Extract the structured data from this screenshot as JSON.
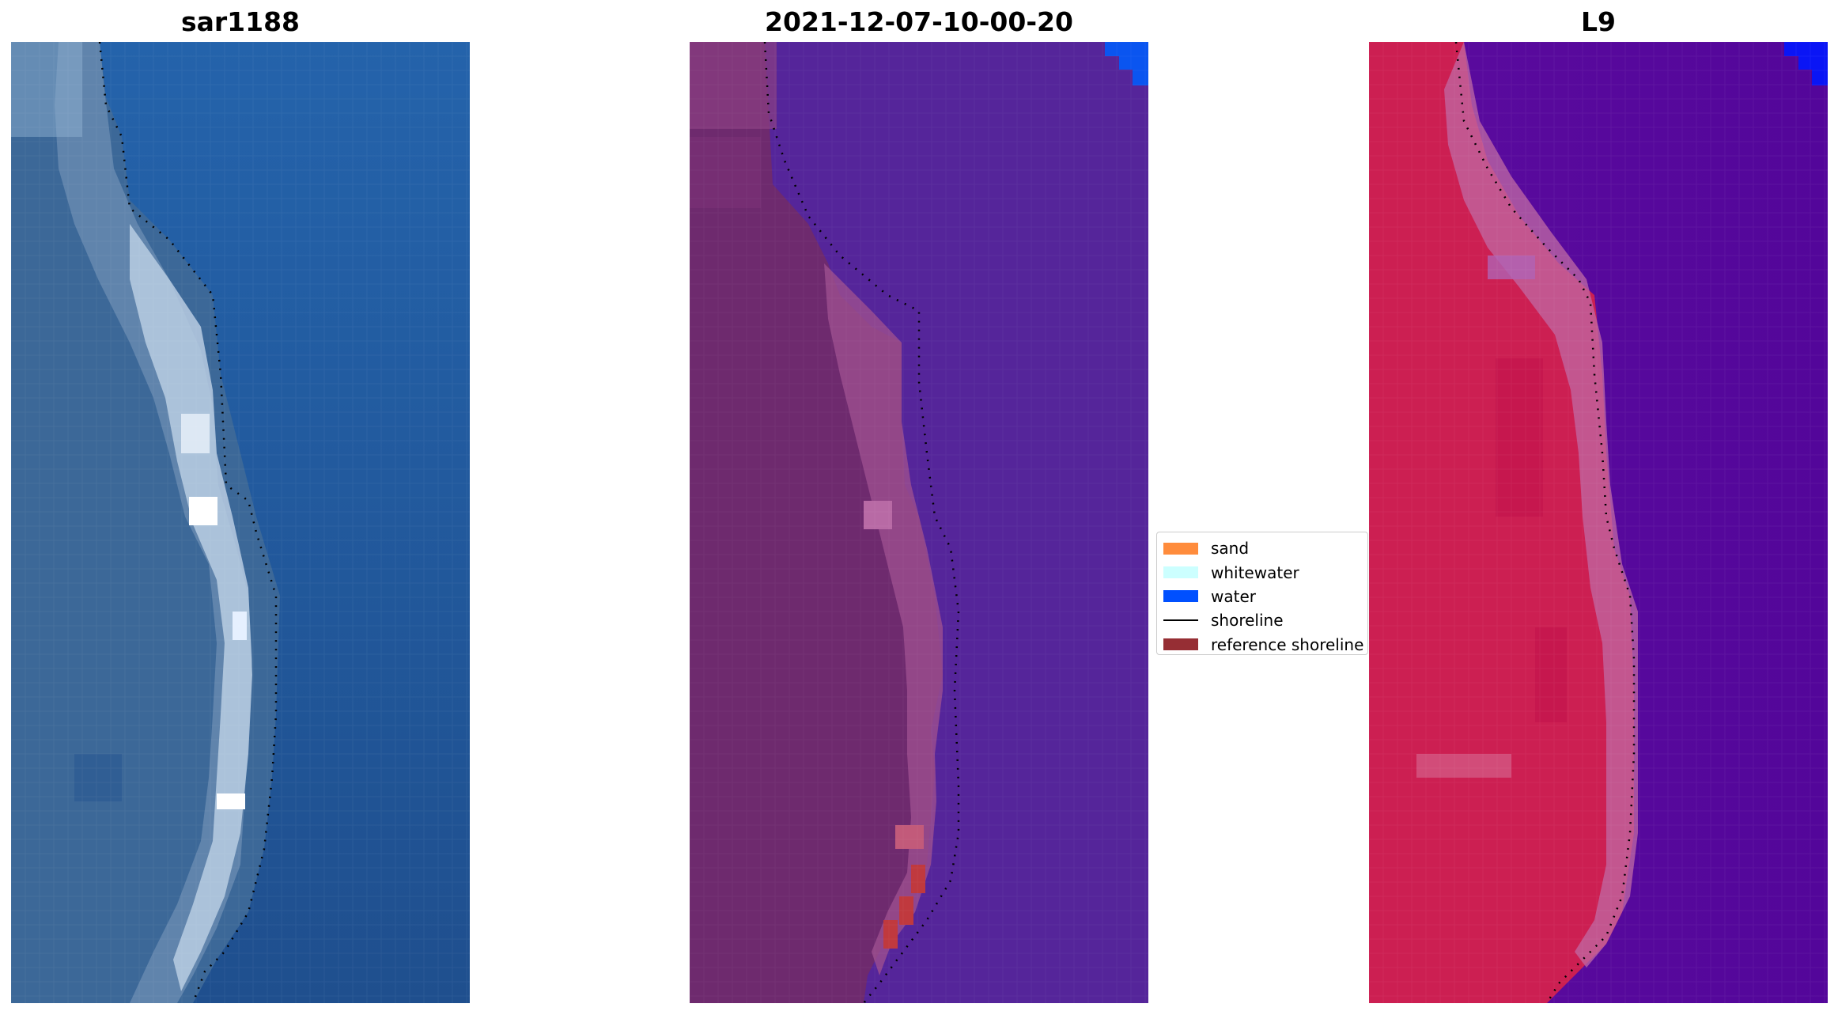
{
  "panels": [
    {
      "title": "sar1188",
      "kind": "rgb"
    },
    {
      "title": "2021-12-07-10-00-20",
      "kind": "classified"
    },
    {
      "title": "L9",
      "kind": "false-color"
    }
  ],
  "legend": {
    "items": [
      {
        "label": "sand",
        "type": "patch",
        "color": "#ff8c3c"
      },
      {
        "label": "whitewater",
        "type": "patch",
        "color": "#ccffff"
      },
      {
        "label": "water",
        "type": "patch",
        "color": "#0050ff"
      },
      {
        "label": "shoreline",
        "type": "line",
        "color": "#000000"
      },
      {
        "label": "reference shoreline",
        "type": "patch",
        "color": "#962e34"
      }
    ]
  },
  "colors": {
    "rgb_water": "#2059a0",
    "rgb_land": "#3f6b9a",
    "classified_water": "#55259a",
    "classified_land": "#6e2a6e",
    "false_color_water": "#57069b",
    "false_color_land": "#cc1f52"
  }
}
